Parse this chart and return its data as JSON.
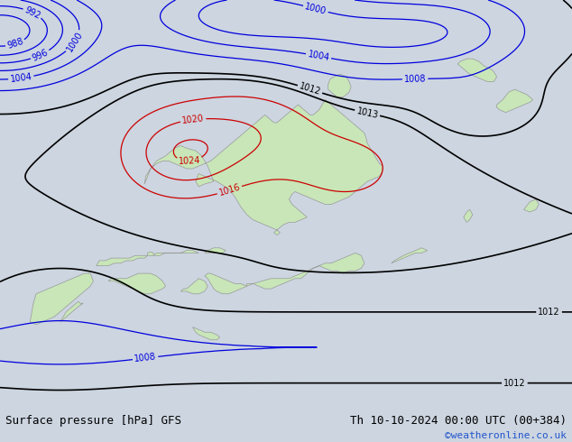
{
  "title_left": "Surface pressure [hPa] GFS",
  "title_right": "Th 10-10-2024 00:00 UTC (00+384)",
  "watermark": "©weatheronline.co.uk",
  "bg_color": "#ccd5e0",
  "land_color": "#c8e6b8",
  "border_color": "#999999",
  "bottom_bar_color": "#ffffff",
  "title_font_size": 9.0,
  "watermark_color": "#2255cc",
  "watermark_font_size": 8,
  "lon_min": 90,
  "lon_max": 185,
  "lat_min": -58,
  "lat_max": 22
}
